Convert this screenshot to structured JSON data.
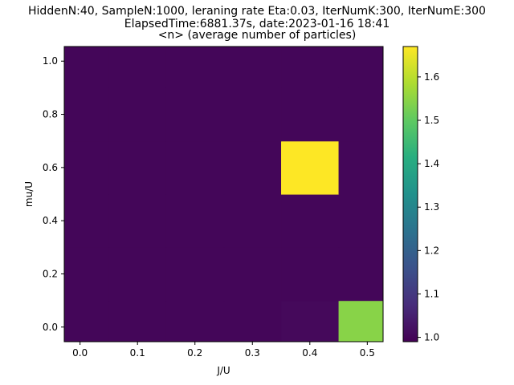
{
  "chart_data": {
    "type": "heatmap",
    "title_lines": [
      "HiddenN:40, SampleN:1000, leraning rate Eta:0.03, IterNumK:300, IterNumE:300",
      "ElapsedTime:6881.37s, date:2023-01-16  18:41",
      "<n> (average number of particles)"
    ],
    "xlabel": "J/U",
    "ylabel": "mu/U",
    "x": [
      0.0,
      0.1,
      0.2,
      0.3,
      0.4,
      0.5
    ],
    "y": [
      0.0,
      0.2,
      0.4,
      0.6,
      0.8,
      1.0
    ],
    "cell_width": 0.1,
    "cell_height": 0.2,
    "xlim": [
      -0.05,
      0.55
    ],
    "ylim": [
      -0.05,
      1.05
    ],
    "x_view": [
      -0.0275,
      0.5275
    ],
    "y_view": [
      -0.055,
      1.055
    ],
    "xticks": [
      "0.0",
      "0.1",
      "0.2",
      "0.3",
      "0.4",
      "0.5"
    ],
    "yticks": [
      "0.0",
      "0.2",
      "0.4",
      "0.6",
      "0.8",
      "1.0"
    ],
    "z": [
      [
        1.0,
        1.0,
        1.0,
        1.0,
        1.005,
        1.545
      ],
      [
        1.0,
        1.0,
        1.0,
        1.0,
        1.0,
        1.0
      ],
      [
        1.0,
        1.0,
        1.0,
        1.0,
        1.0,
        1.0
      ],
      [
        1.0,
        1.0,
        1.0,
        1.0,
        1.67,
        1.0
      ],
      [
        1.0,
        1.0,
        1.0,
        1.0,
        1.0,
        1.0
      ],
      [
        1.0,
        1.0,
        1.0,
        1.0,
        1.0,
        1.0
      ]
    ],
    "colorbar": {
      "vmin": 0.99,
      "vmax": 1.67,
      "ticks": [
        "1.0",
        "1.1",
        "1.2",
        "1.3",
        "1.4",
        "1.5",
        "1.6"
      ],
      "colormap": "viridis"
    },
    "grid": false,
    "legend": "none"
  }
}
